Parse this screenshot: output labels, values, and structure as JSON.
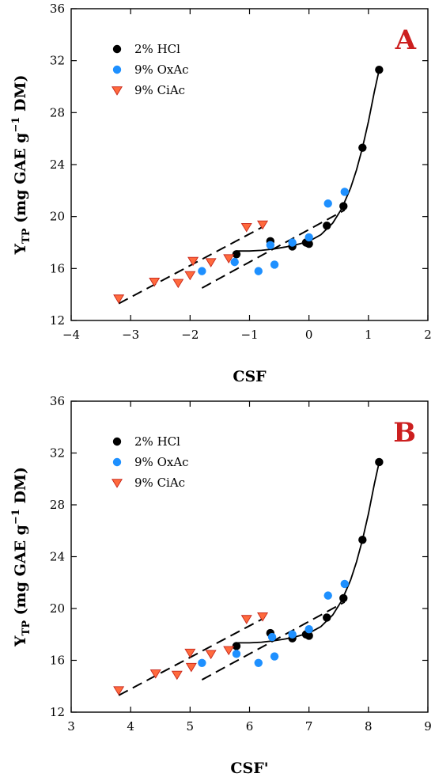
{
  "chart_data": [
    {
      "type": "scatter",
      "panel_label": "A",
      "xlabel": "CSF",
      "ylabel_main": "Y",
      "ylabel_sub": "TP",
      "ylabel_rest": " (mg GAE g",
      "ylabel_sup": "−1",
      "ylabel_end": " DM)",
      "xlim": [
        -4,
        2
      ],
      "ylim": [
        12,
        36
      ],
      "xticks": [
        -4,
        -3,
        -2,
        -1,
        0,
        1,
        2
      ],
      "xtick_labels": [
        "−4",
        "−3",
        "−2",
        "−1",
        "0",
        "1",
        "2"
      ],
      "yticks": [
        12,
        16,
        20,
        24,
        28,
        32,
        36
      ],
      "ytick_labels": [
        "12",
        "16",
        "20",
        "24",
        "28",
        "32",
        "36"
      ],
      "legend_position": "top-left",
      "series": [
        {
          "name": "2% HCl",
          "marker": "circle",
          "color": "#000000",
          "x": [
            -1.22,
            -0.65,
            -0.28,
            -0.05,
            0.0,
            0.3,
            0.58,
            0.9,
            1.18
          ],
          "y": [
            17.1,
            18.1,
            17.7,
            18.0,
            17.9,
            19.3,
            20.8,
            25.3,
            31.3
          ]
        },
        {
          "name": "9% OxAc",
          "marker": "circle",
          "color": "#1e90ff",
          "x": [
            -1.8,
            -1.25,
            -0.65,
            -0.85,
            -0.58,
            -0.28,
            0.0,
            0.32,
            0.6
          ],
          "y": [
            15.8,
            16.5,
            17.8,
            15.8,
            16.3,
            18.0,
            18.4,
            21.0,
            21.9
          ]
        },
        {
          "name": "9% CiAc",
          "marker": "triangle-down",
          "color": "#ff6a3d",
          "x": [
            -3.2,
            -2.6,
            -2.2,
            -2.0,
            -1.95,
            -1.65,
            -1.35,
            -1.05,
            -0.78
          ],
          "y": [
            13.7,
            15.0,
            14.9,
            15.5,
            16.6,
            16.5,
            16.8,
            19.2,
            19.4
          ]
        }
      ],
      "fit_curve": {
        "series": "2% HCl",
        "x": [
          -1.22,
          -1.0,
          -0.8,
          -0.6,
          -0.4,
          -0.2,
          0.0,
          0.2,
          0.4,
          0.55,
          0.7,
          0.8,
          0.9,
          1.0,
          1.1,
          1.18
        ],
        "y": [
          17.35,
          17.35,
          17.4,
          17.5,
          17.65,
          17.85,
          18.1,
          18.6,
          19.5,
          20.6,
          22.2,
          23.6,
          25.3,
          27.3,
          29.6,
          31.3
        ]
      },
      "dashed_lines": [
        {
          "series": "9% CiAc",
          "x": [
            -3.2,
            -0.78
          ],
          "y": [
            13.3,
            19.2
          ]
        },
        {
          "series": "9% OxAc",
          "x": [
            -1.8,
            0.6
          ],
          "y": [
            14.5,
            20.5
          ]
        }
      ]
    },
    {
      "type": "scatter",
      "panel_label": "B",
      "xlabel": "CSF'",
      "ylabel_main": "Y",
      "ylabel_sub": "TP",
      "ylabel_rest": " (mg GAE g",
      "ylabel_sup": "−1",
      "ylabel_end": " DM)",
      "xlim": [
        3,
        9
      ],
      "ylim": [
        12,
        36
      ],
      "xticks": [
        3,
        4,
        5,
        6,
        7,
        8,
        9
      ],
      "xtick_labels": [
        "3",
        "4",
        "5",
        "6",
        "7",
        "8",
        "9"
      ],
      "yticks": [
        12,
        16,
        20,
        24,
        28,
        32,
        36
      ],
      "ytick_labels": [
        "12",
        "16",
        "20",
        "24",
        "28",
        "32",
        "36"
      ],
      "legend_position": "top-left",
      "series": [
        {
          "name": "2% HCl",
          "marker": "circle",
          "color": "#000000",
          "x": [
            5.78,
            6.35,
            6.72,
            6.95,
            7.0,
            7.3,
            7.58,
            7.9,
            8.18
          ],
          "y": [
            17.1,
            18.1,
            17.7,
            18.0,
            17.9,
            19.3,
            20.8,
            25.3,
            31.3
          ]
        },
        {
          "name": "9% OxAc",
          "marker": "circle",
          "color": "#1e90ff",
          "x": [
            5.2,
            5.78,
            6.38,
            6.15,
            6.42,
            6.72,
            7.0,
            7.32,
            7.6
          ],
          "y": [
            15.8,
            16.5,
            17.8,
            15.8,
            16.3,
            18.0,
            18.4,
            21.0,
            21.9
          ]
        },
        {
          "name": "9% CiAc",
          "marker": "triangle-down",
          "color": "#ff6a3d",
          "x": [
            3.8,
            4.42,
            4.78,
            5.02,
            5.0,
            5.35,
            5.65,
            5.95,
            6.22
          ],
          "y": [
            13.7,
            15.0,
            14.9,
            15.5,
            16.6,
            16.5,
            16.8,
            19.2,
            19.4
          ]
        }
      ],
      "fit_curve": {
        "series": "2% HCl",
        "x": [
          5.78,
          6.0,
          6.2,
          6.4,
          6.6,
          6.8,
          7.0,
          7.2,
          7.4,
          7.55,
          7.7,
          7.8,
          7.9,
          8.0,
          8.1,
          8.18
        ],
        "y": [
          17.35,
          17.35,
          17.4,
          17.5,
          17.65,
          17.85,
          18.1,
          18.6,
          19.5,
          20.6,
          22.2,
          23.6,
          25.3,
          27.3,
          29.6,
          31.3
        ]
      },
      "dashed_lines": [
        {
          "series": "9% CiAc",
          "x": [
            3.8,
            6.22
          ],
          "y": [
            13.3,
            19.2
          ]
        },
        {
          "series": "9% OxAc",
          "x": [
            5.2,
            7.6
          ],
          "y": [
            14.5,
            20.5
          ]
        }
      ]
    }
  ],
  "colors": {
    "panel_letter": "#cc1f1f",
    "hcl": "#000000",
    "oxac": "#1e90ff",
    "ciac": "#ff6a3d",
    "ciac_edge": "#c8261a"
  }
}
